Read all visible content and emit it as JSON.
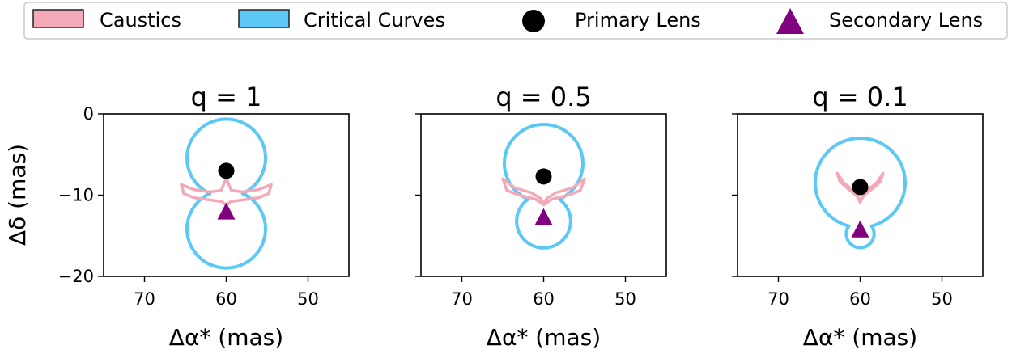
{
  "legend": {
    "items": [
      {
        "label": "Caustics",
        "kind": "patch",
        "face": "#f4a9b8",
        "edge": "#222222"
      },
      {
        "label": "Critical Curves",
        "kind": "patch",
        "face": "#5bc8f5",
        "edge": "#222222"
      },
      {
        "label": "Primary Lens",
        "kind": "circle",
        "color": "#000000"
      },
      {
        "label": "Secondary Lens",
        "kind": "triangle",
        "color": "#800080"
      }
    ]
  },
  "colors": {
    "caustics": "#f4a9b8",
    "critical_curves": "#5bc8f5",
    "primary_lens": "#000000",
    "secondary_lens": "#800080"
  },
  "chart_data": [
    {
      "type": "scatter",
      "title": "q = 1",
      "xlabel": "Δα* (mas)",
      "ylabel": "Δδ (mas)",
      "xlim": [
        75,
        45
      ],
      "ylim": [
        -20,
        0
      ],
      "xticks": [
        70,
        60,
        50
      ],
      "yticks": [
        0,
        -10,
        -20
      ],
      "primary_lens": {
        "x": 60,
        "y": -7
      },
      "secondary_lens": {
        "x": 60,
        "y": -12
      },
      "critical_curve": {
        "center_x": 60,
        "center_y": -9.5,
        "upper_radius": 4.8,
        "lower_radius": 4.8,
        "neck_halfwidth": 2.0,
        "neck_y": -9.8
      },
      "caustic": {
        "x": [
          65.5,
          64,
          62,
          60.6,
          60.2,
          60,
          59.8,
          59.4,
          58,
          56,
          54.5,
          54.8,
          56,
          58,
          59.5,
          60,
          60.5,
          62,
          64,
          65.2
        ],
        "y": [
          -8.7,
          -9.3,
          -9.6,
          -9.4,
          -8.4,
          -8.0,
          -8.4,
          -9.4,
          -9.6,
          -9.3,
          -8.7,
          -9.8,
          -10.3,
          -10.6,
          -10.8,
          -11.3,
          -10.8,
          -10.6,
          -10.3,
          -9.8
        ]
      }
    },
    {
      "type": "scatter",
      "title": "q = 0.5",
      "xlabel": "Δα* (mas)",
      "xlim": [
        75,
        45
      ],
      "ylim": [
        -20,
        0
      ],
      "xticks": [
        70,
        60,
        50
      ],
      "yticks": [
        0,
        -10,
        -20
      ],
      "primary_lens": {
        "x": 60,
        "y": -7.7
      },
      "secondary_lens": {
        "x": 60,
        "y": -12.7
      },
      "critical_curve": {
        "center_x": 60,
        "center_y": -10,
        "upper_radius": 4.8,
        "lower_radius": 3.3,
        "neck_halfwidth": 1.9,
        "neck_y": -10.5
      },
      "caustic": {
        "x": [
          65,
          63.5,
          61.5,
          60.4,
          60,
          59.6,
          58.5,
          56.5,
          55,
          55.5,
          57,
          59,
          60,
          61,
          63,
          64.5
        ],
        "y": [
          -8,
          -9.1,
          -9.7,
          -10.4,
          -11,
          -10.4,
          -9.7,
          -9.1,
          -8,
          -9.4,
          -10,
          -10.5,
          -11.2,
          -10.5,
          -10,
          -9.4
        ]
      }
    },
    {
      "type": "scatter",
      "title": "q = 0.1",
      "xlabel": "Δα* (mas)",
      "xlim": [
        75,
        45
      ],
      "ylim": [
        -20,
        0
      ],
      "xticks": [
        70,
        60,
        50
      ],
      "yticks": [
        0,
        -10,
        -20
      ],
      "primary_lens": {
        "x": 60,
        "y": -9
      },
      "secondary_lens": {
        "x": 60,
        "y": -14.2
      },
      "critical_curve": {
        "center_x": 60,
        "center_y": -9,
        "upper_radius": 5.5,
        "lower_radius": 1.7,
        "neck_halfwidth": 1.4,
        "neck_y": -13.8
      },
      "caustic": {
        "x": [
          62.8,
          62,
          60.8,
          60.3,
          60,
          59.7,
          59.2,
          58,
          57.2,
          57.5,
          58.5,
          59.5,
          60,
          60.5,
          61.5,
          62.5
        ],
        "y": [
          -7.3,
          -8.5,
          -9.4,
          -10.3,
          -10.9,
          -10.3,
          -9.4,
          -8.5,
          -7.3,
          -8.3,
          -9.2,
          -10,
          -10.6,
          -10,
          -9.2,
          -8.3
        ]
      }
    }
  ]
}
